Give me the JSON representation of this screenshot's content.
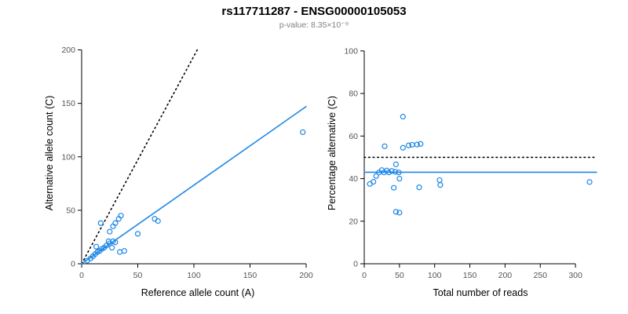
{
  "title": "rs117711287 - ENSG00000105053",
  "subtitle": "p-value: 8.35×10⁻⁹",
  "colors": {
    "accent_blue": "#1e87e5",
    "line_black": "#000000",
    "subtitle_gray": "#808080",
    "tick_gray": "#555555"
  },
  "chart_data": [
    {
      "type": "scatter",
      "title": "",
      "xlabel": "Reference allele count (A)",
      "ylabel": "Alternative allele count (C)",
      "xlim": [
        0,
        207
      ],
      "ylim": [
        0,
        207
      ],
      "xticks": [
        0,
        50,
        100,
        150,
        200
      ],
      "yticks": [
        0,
        50,
        100,
        150,
        200
      ],
      "grid": false,
      "point_color": "#1e87e5",
      "points": [
        [
          5,
          3
        ],
        [
          8,
          5
        ],
        [
          10,
          7
        ],
        [
          12,
          9
        ],
        [
          13,
          16
        ],
        [
          14,
          11
        ],
        [
          16,
          12
        ],
        [
          17,
          38
        ],
        [
          18,
          14
        ],
        [
          20,
          15
        ],
        [
          22,
          17
        ],
        [
          24,
          21
        ],
        [
          25,
          19
        ],
        [
          25,
          30
        ],
        [
          27,
          15
        ],
        [
          28,
          21
        ],
        [
          28,
          35
        ],
        [
          30,
          20
        ],
        [
          30,
          38
        ],
        [
          33,
          42
        ],
        [
          34,
          11
        ],
        [
          35,
          45
        ],
        [
          38,
          12
        ],
        [
          50,
          28
        ],
        [
          65,
          42
        ],
        [
          68,
          40
        ],
        [
          197,
          123
        ]
      ],
      "lines": [
        {
          "name": "identity-dotted-line",
          "x1": 0,
          "y1": 0,
          "x2": 103,
          "y2": 200,
          "style": "dotted",
          "color": "#000000"
        },
        {
          "name": "fit-line",
          "x1": 0,
          "y1": 0,
          "x2": 200,
          "y2": 147,
          "style": "solid",
          "color": "#1e87e5"
        }
      ]
    },
    {
      "type": "scatter",
      "title": "",
      "xlabel": "Total number of reads",
      "ylabel": "Percentage alternative (C)",
      "xlim": [
        0,
        330
      ],
      "ylim": [
        0,
        104
      ],
      "xticks": [
        0,
        50,
        100,
        150,
        200,
        250,
        300
      ],
      "yticks": [
        0,
        20,
        40,
        60,
        80,
        100
      ],
      "grid": false,
      "point_color": "#1e87e5",
      "points": [
        [
          8,
          37.5
        ],
        [
          13,
          38.5
        ],
        [
          17,
          41.2
        ],
        [
          21,
          42.9
        ],
        [
          25,
          44
        ],
        [
          28,
          42.9
        ],
        [
          29,
          55.2
        ],
        [
          32,
          43.8
        ],
        [
          35,
          42.9
        ],
        [
          39,
          43.6
        ],
        [
          42,
          35.7
        ],
        [
          44,
          43.2
        ],
        [
          45,
          24.4
        ],
        [
          45,
          46.7
        ],
        [
          49,
          42.9
        ],
        [
          50,
          24
        ],
        [
          50,
          40
        ],
        [
          55,
          54.5
        ],
        [
          55,
          69.1
        ],
        [
          63,
          55.6
        ],
        [
          68,
          55.9
        ],
        [
          75,
          56
        ],
        [
          78,
          35.9
        ],
        [
          80,
          56.3
        ],
        [
          107,
          39.3
        ],
        [
          108,
          37
        ],
        [
          320,
          38.4
        ]
      ],
      "lines": [
        {
          "name": "expected-50pct-dotted-line",
          "x1": 0,
          "y1": 50,
          "x2": 330,
          "y2": 50,
          "style": "dotted",
          "color": "#000000"
        },
        {
          "name": "mean-pct-line",
          "x1": 0,
          "y1": 43,
          "x2": 330,
          "y2": 43,
          "style": "solid",
          "color": "#1e87e5"
        }
      ]
    }
  ]
}
